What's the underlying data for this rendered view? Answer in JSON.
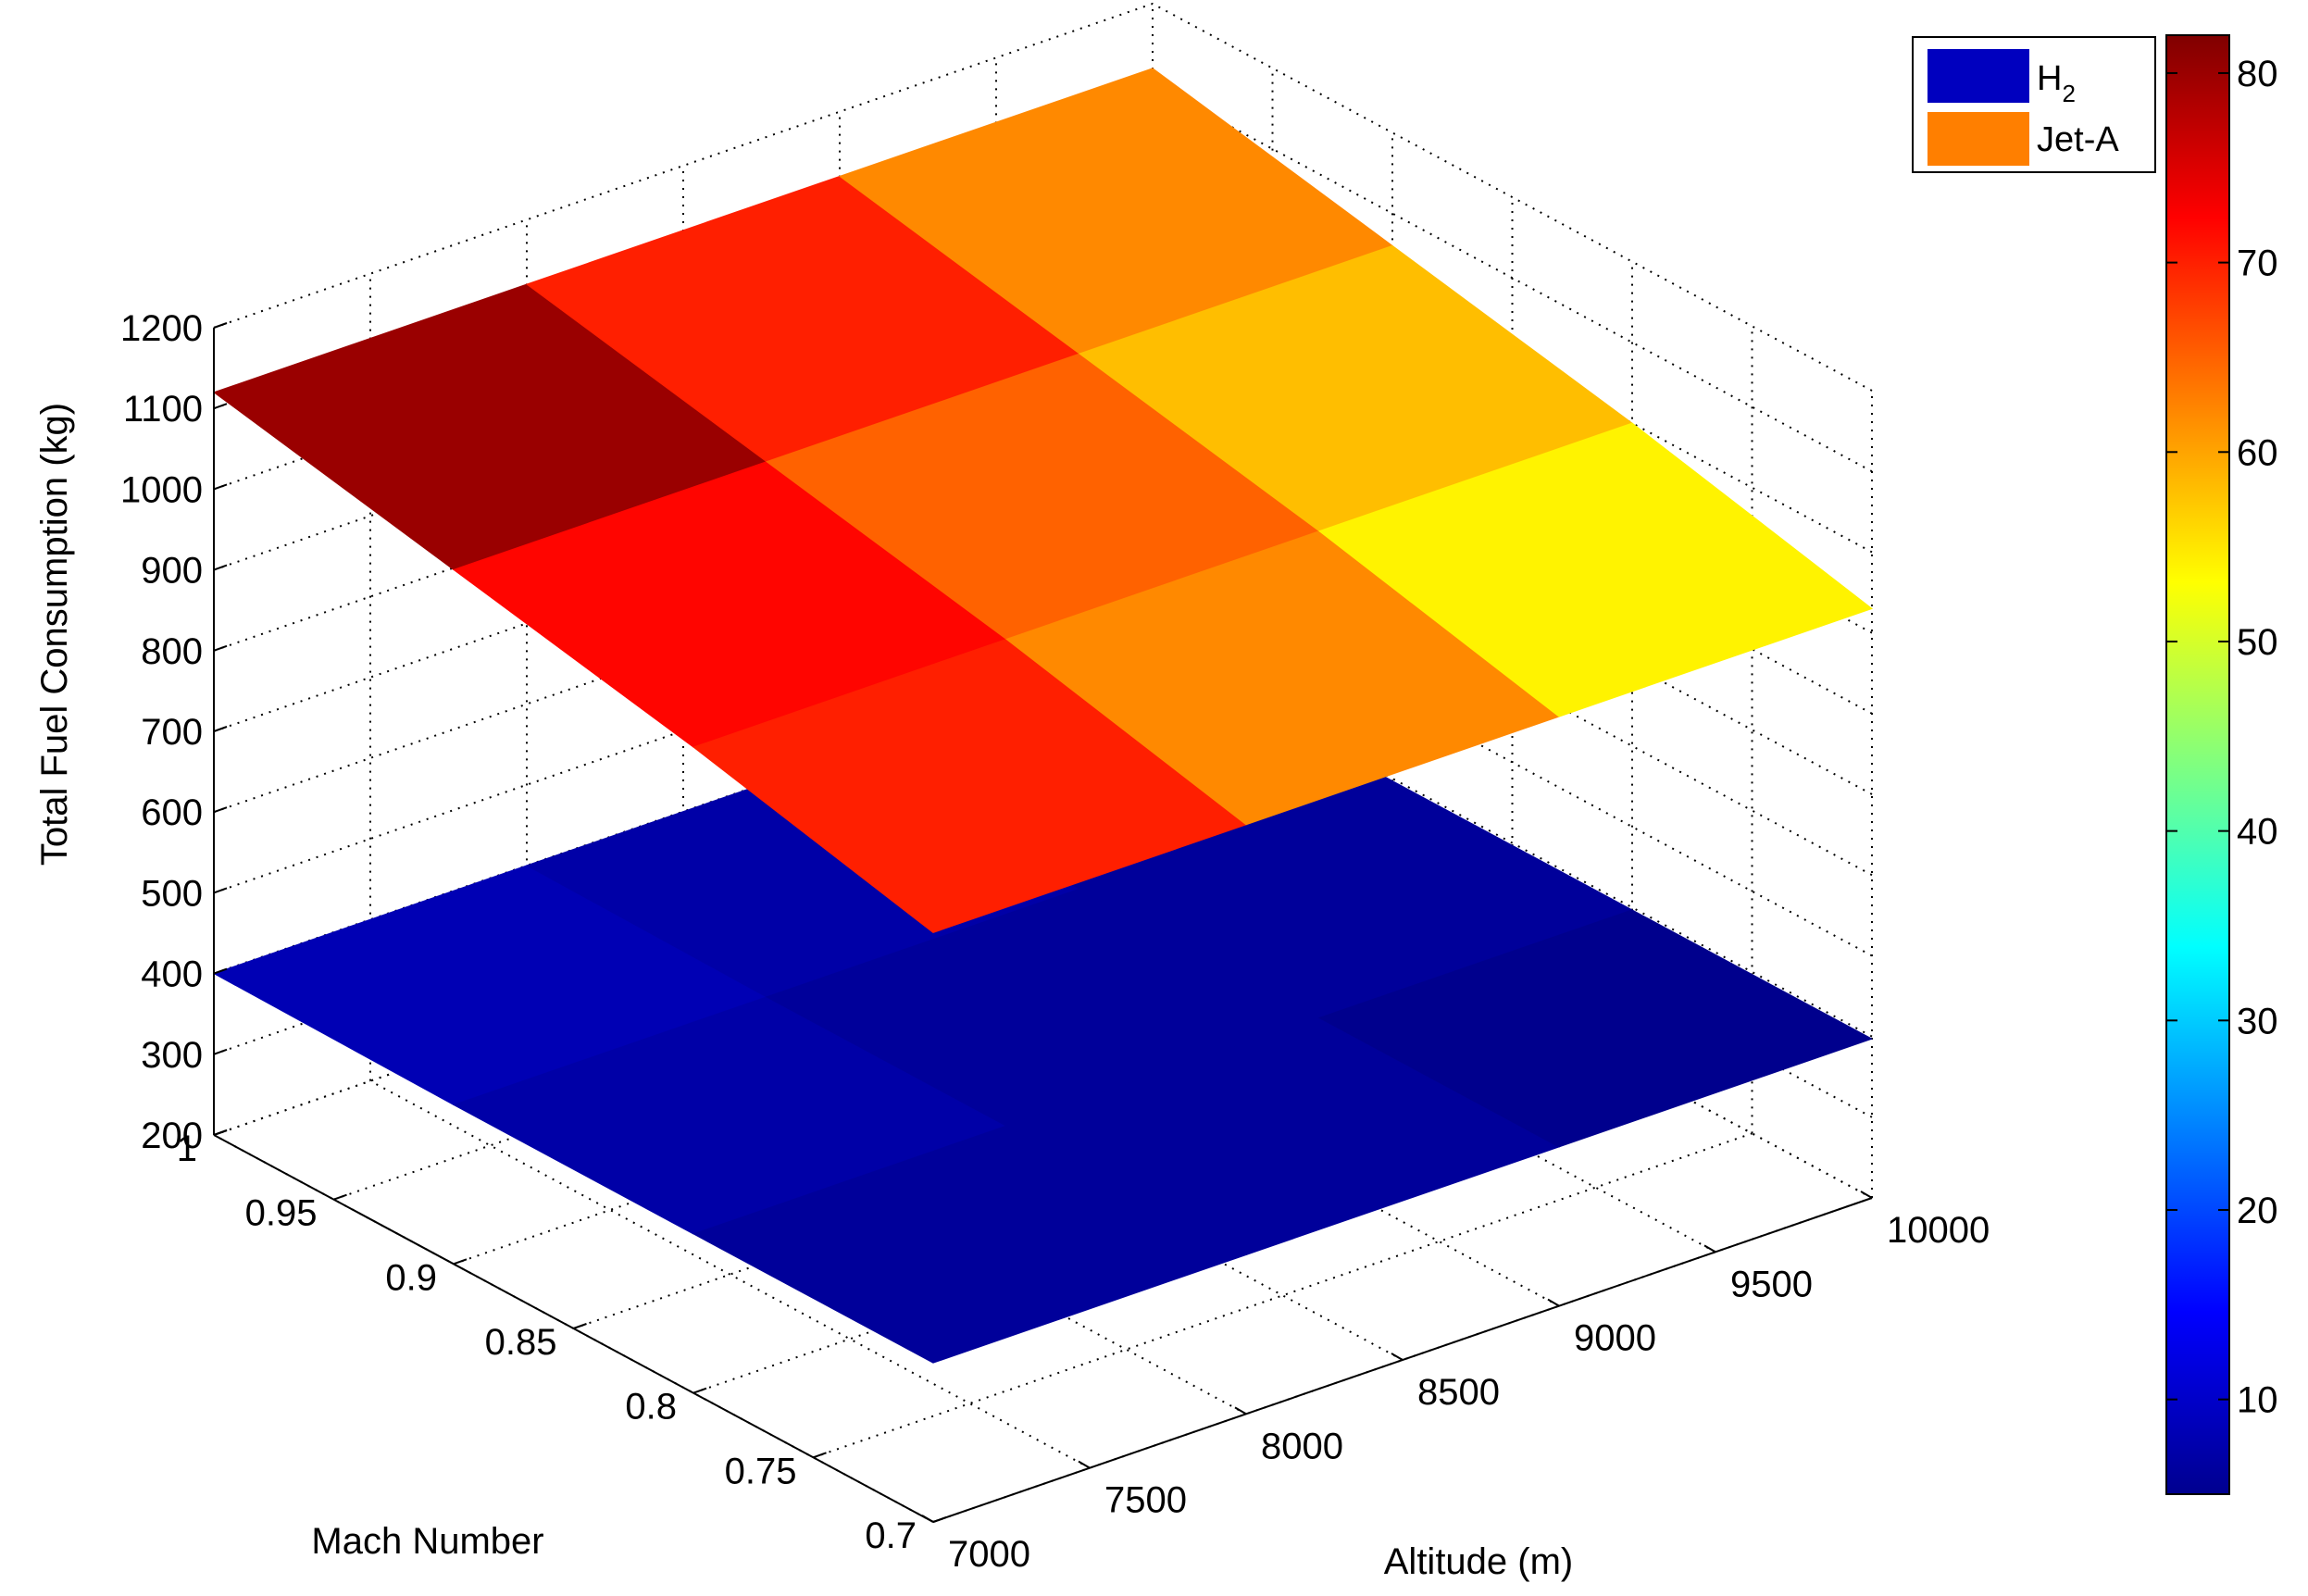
{
  "chart_data": {
    "type": "surface3d",
    "title": "",
    "xlabel": "Altitude (m)",
    "ylabel": "Mach Number",
    "zlabel": "Total Fuel Consumption (kg)",
    "x": [
      7000,
      7500,
      8000,
      8500,
      9000,
      9500,
      10000
    ],
    "y": [
      0.7,
      0.75,
      0.8,
      0.85,
      0.9,
      0.95,
      1
    ],
    "x_ticks": [
      "7000",
      "7500",
      "8000",
      "8500",
      "9000",
      "9500",
      "10000"
    ],
    "y_ticks": [
      "0.7",
      "0.75",
      "0.8",
      "0.85",
      "0.9",
      "0.95",
      "1"
    ],
    "z_ticks": [
      "200",
      "300",
      "400",
      "500",
      "600",
      "700",
      "800",
      "900",
      "1000",
      "1100",
      "1200"
    ],
    "xlim": [
      7000,
      10000
    ],
    "ylim": [
      0.7,
      1
    ],
    "zlim": [
      200,
      1200
    ],
    "grid": true,
    "legend_position": "top-right",
    "colormap": "jet",
    "colorbar": {
      "range": [
        5,
        82
      ],
      "ticks": [
        "10",
        "20",
        "30",
        "40",
        "50",
        "60",
        "70",
        "80"
      ]
    },
    "series": [
      {
        "name": "H2",
        "legend_main": "H",
        "legend_sub": "2",
        "legend_color": "#0000bf",
        "x_grid": [
          7000,
          8000,
          9000,
          10000
        ],
        "y_grid": [
          0.7,
          0.8,
          0.9,
          1
        ],
        "z_grid": [
          [
            397,
            397,
            397,
            397
          ],
          [
            397,
            397,
            397,
            397
          ],
          [
            397,
            397,
            397,
            397
          ],
          [
            400,
            400,
            400,
            400
          ]
        ],
        "cell_color_values": [
          [
            7,
            7,
            6
          ],
          [
            8,
            7,
            7
          ],
          [
            9,
            8,
            7
          ]
        ]
      },
      {
        "name": "Jet-A",
        "legend_main": "Jet-A",
        "legend_sub": "",
        "legend_color": "#ff7f00",
        "x_grid": [
          7000,
          8000,
          9000,
          10000
        ],
        "y_grid": [
          0.7,
          0.8,
          0.9,
          1
        ],
        "z_grid": [
          [
            930,
            930,
            930,
            930
          ],
          [
            1000,
            1000,
            1000,
            1000
          ],
          [
            1060,
            1060,
            1060,
            1060
          ],
          [
            1120,
            1120,
            1120,
            1120
          ]
        ],
        "cell_color_values": [
          [
            70,
            62,
            54
          ],
          [
            72,
            65,
            58
          ],
          [
            80,
            70,
            62
          ]
        ]
      }
    ]
  }
}
